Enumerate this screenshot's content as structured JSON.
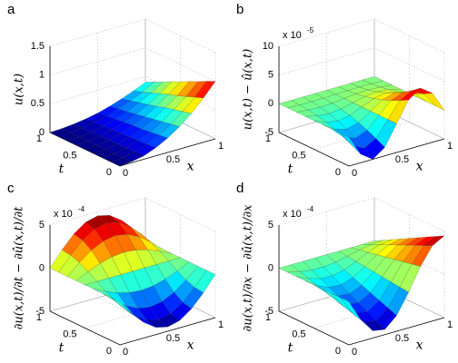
{
  "chart_data": [
    {
      "type": "surface",
      "panel_label": "a",
      "zlabel": "u(x,t)",
      "xlabel": "x",
      "tlabel": "t",
      "x": [
        0,
        0.125,
        0.25,
        0.375,
        0.5,
        0.625,
        0.75,
        0.875,
        1
      ],
      "t": [
        0,
        0.125,
        0.25,
        0.375,
        0.5,
        0.625,
        0.75,
        0.875,
        1
      ],
      "z": [
        [
          0,
          0.02,
          0.06,
          0.14,
          0.25,
          0.39,
          0.56,
          0.77,
          1
        ],
        [
          0,
          0.01,
          0.06,
          0.13,
          0.23,
          0.36,
          0.52,
          0.71,
          0.93
        ],
        [
          0,
          0.01,
          0.05,
          0.12,
          0.21,
          0.33,
          0.48,
          0.65,
          0.85
        ],
        [
          0,
          0.01,
          0.05,
          0.11,
          0.19,
          0.3,
          0.44,
          0.59,
          0.78
        ],
        [
          0,
          0.01,
          0.04,
          0.1,
          0.18,
          0.27,
          0.39,
          0.54,
          0.7
        ],
        [
          0,
          0.01,
          0.04,
          0.09,
          0.16,
          0.24,
          0.35,
          0.48,
          0.63
        ],
        [
          0,
          0.01,
          0.03,
          0.08,
          0.14,
          0.21,
          0.31,
          0.42,
          0.55
        ],
        [
          0,
          0.01,
          0.03,
          0.07,
          0.12,
          0.19,
          0.27,
          0.36,
          0.48
        ],
        [
          0,
          0.01,
          0.03,
          0.06,
          0.1,
          0.16,
          0.23,
          0.31,
          0.4
        ]
      ],
      "xlim": [
        0,
        1
      ],
      "tlim": [
        0,
        1
      ],
      "zlim": [
        0,
        1.5
      ],
      "xticks": [
        0,
        0.5,
        1
      ],
      "tticks": [
        0,
        0.5,
        1
      ],
      "zticks": [
        0,
        0.5,
        1,
        1.5
      ],
      "colormap": "jet",
      "grid": true
    },
    {
      "type": "surface",
      "panel_label": "b",
      "zlabel": "u(x,t) − û(x,t)",
      "xlabel": "x",
      "tlabel": "t",
      "multiplier": {
        "base": "x 10",
        "exponent": "-5"
      },
      "x": [
        0,
        0.125,
        0.25,
        0.375,
        0.5,
        0.625,
        0.75,
        0.875,
        1
      ],
      "t": [
        0,
        0.125,
        0.25,
        0.375,
        0.5,
        0.625,
        0.75,
        0.875,
        1
      ],
      "z": [
        [
          0,
          -3.54,
          -5,
          -3.54,
          0,
          3.54,
          5,
          3.54,
          0
        ],
        [
          0,
          -2.71,
          -3.83,
          -2.71,
          0,
          2.71,
          3.83,
          2.71,
          0
        ],
        [
          0,
          -1.99,
          -2.81,
          -1.99,
          0,
          1.99,
          2.81,
          1.99,
          0
        ],
        [
          0,
          -1.38,
          -1.95,
          -1.38,
          0,
          1.38,
          1.95,
          1.38,
          0
        ],
        [
          0,
          -0.89,
          -1.25,
          -0.89,
          0,
          0.89,
          1.25,
          0.89,
          0
        ],
        [
          0,
          -0.5,
          -0.71,
          -0.5,
          0,
          0.5,
          0.71,
          0.5,
          0
        ],
        [
          0,
          -0.22,
          -0.31,
          -0.22,
          0,
          0.22,
          0.31,
          0.22,
          0
        ],
        [
          0,
          -0.06,
          -0.08,
          -0.06,
          0,
          0.06,
          0.08,
          0.06,
          0
        ],
        [
          0,
          0,
          0,
          0,
          0,
          0,
          0,
          0,
          0
        ]
      ],
      "xlim": [
        0,
        1
      ],
      "tlim": [
        0,
        1
      ],
      "zlim": [
        -5,
        10
      ],
      "xticks": [
        0,
        0.5,
        1
      ],
      "tticks": [
        0,
        0.5,
        1
      ],
      "zticks": [
        -5,
        0,
        5,
        10
      ],
      "colormap": "jet",
      "grid": true
    },
    {
      "type": "surface",
      "panel_label": "c",
      "zlabel": "∂u(x,t)/∂t − ∂û(x,t)/∂t",
      "xlabel": "x",
      "tlabel": "t",
      "multiplier": {
        "base": "x 10",
        "exponent": "-4"
      },
      "x": [
        0,
        0.125,
        0.25,
        0.375,
        0.5,
        0.625,
        0.75,
        0.875,
        1
      ],
      "t": [
        0,
        0.125,
        0.25,
        0.375,
        0.5,
        0.625,
        0.75,
        0.875,
        1
      ],
      "z": [
        [
          0,
          -1.72,
          -3.18,
          -4.16,
          -4.5,
          -4.16,
          -3.18,
          -1.72,
          0
        ],
        [
          0,
          -1.59,
          -2.94,
          -3.84,
          -4.16,
          -3.84,
          -2.94,
          -1.59,
          0
        ],
        [
          0,
          -1.22,
          -2.25,
          -2.94,
          -3.18,
          -2.94,
          -2.25,
          -1.22,
          0
        ],
        [
          0,
          -0.66,
          -1.22,
          -1.59,
          -1.72,
          -1.59,
          -1.22,
          -0.66,
          0
        ],
        [
          0,
          0,
          0,
          0,
          0,
          0,
          0,
          0,
          0
        ],
        [
          0,
          0.66,
          1.22,
          1.59,
          1.72,
          1.59,
          1.22,
          0.66,
          0
        ],
        [
          0,
          1.22,
          2.25,
          2.94,
          3.18,
          2.94,
          2.25,
          1.22,
          0
        ],
        [
          0,
          1.59,
          2.94,
          3.84,
          4.16,
          3.84,
          2.94,
          1.59,
          0
        ],
        [
          0,
          1.72,
          3.18,
          4.16,
          4.5,
          4.16,
          3.18,
          1.72,
          0
        ]
      ],
      "xlim": [
        0,
        1
      ],
      "tlim": [
        0,
        1
      ],
      "zlim": [
        -5,
        5
      ],
      "xticks": [
        0,
        0.5,
        1
      ],
      "tticks": [
        0,
        0.5,
        1
      ],
      "zticks": [
        -5,
        0,
        5
      ],
      "colormap": "jet",
      "grid": true
    },
    {
      "type": "surface",
      "panel_label": "d",
      "zlabel": "∂u(x,t)/∂x − ∂û(x,t)/∂x",
      "xlabel": "x",
      "tlabel": "t",
      "multiplier": {
        "base": "x 10",
        "exponent": "-4"
      },
      "x": [
        0,
        0.125,
        0.25,
        0.375,
        0.5,
        0.625,
        0.75,
        0.875,
        1
      ],
      "t": [
        0,
        0.125,
        0.25,
        0.375,
        0.5,
        0.625,
        0.75,
        0.875,
        1
      ],
      "z": [
        [
          0,
          -2.5,
          -4.16,
          -4.41,
          -3.18,
          -0.88,
          1.72,
          3.74,
          4.5
        ],
        [
          0,
          -2.19,
          -3.64,
          -3.86,
          -2.78,
          -0.77,
          1.51,
          3.27,
          3.94
        ],
        [
          0,
          -1.88,
          -3.12,
          -3.31,
          -2.39,
          -0.66,
          1.29,
          2.81,
          3.38
        ],
        [
          0,
          -1.56,
          -2.6,
          -2.76,
          -1.99,
          -0.55,
          1.08,
          2.34,
          2.81
        ],
        [
          0,
          -1.25,
          -2.08,
          -2.21,
          -1.59,
          -0.44,
          0.86,
          1.87,
          2.25
        ],
        [
          0,
          -0.94,
          -1.56,
          -1.65,
          -1.19,
          -0.33,
          0.65,
          1.4,
          1.69
        ],
        [
          0,
          -0.63,
          -1.04,
          -1.1,
          -0.8,
          -0.22,
          0.43,
          0.94,
          1.13
        ],
        [
          0,
          -0.31,
          -0.52,
          -0.55,
          -0.4,
          -0.11,
          0.22,
          0.47,
          0.56
        ],
        [
          0,
          0,
          0,
          0,
          0,
          0,
          0,
          0,
          0
        ]
      ],
      "xlim": [
        0,
        1
      ],
      "tlim": [
        0,
        1
      ],
      "zlim": [
        -5,
        5
      ],
      "xticks": [
        0,
        0.5,
        1
      ],
      "tticks": [
        0,
        0.5,
        1
      ],
      "zticks": [
        -5,
        0,
        5
      ],
      "colormap": "jet",
      "grid": true
    }
  ]
}
